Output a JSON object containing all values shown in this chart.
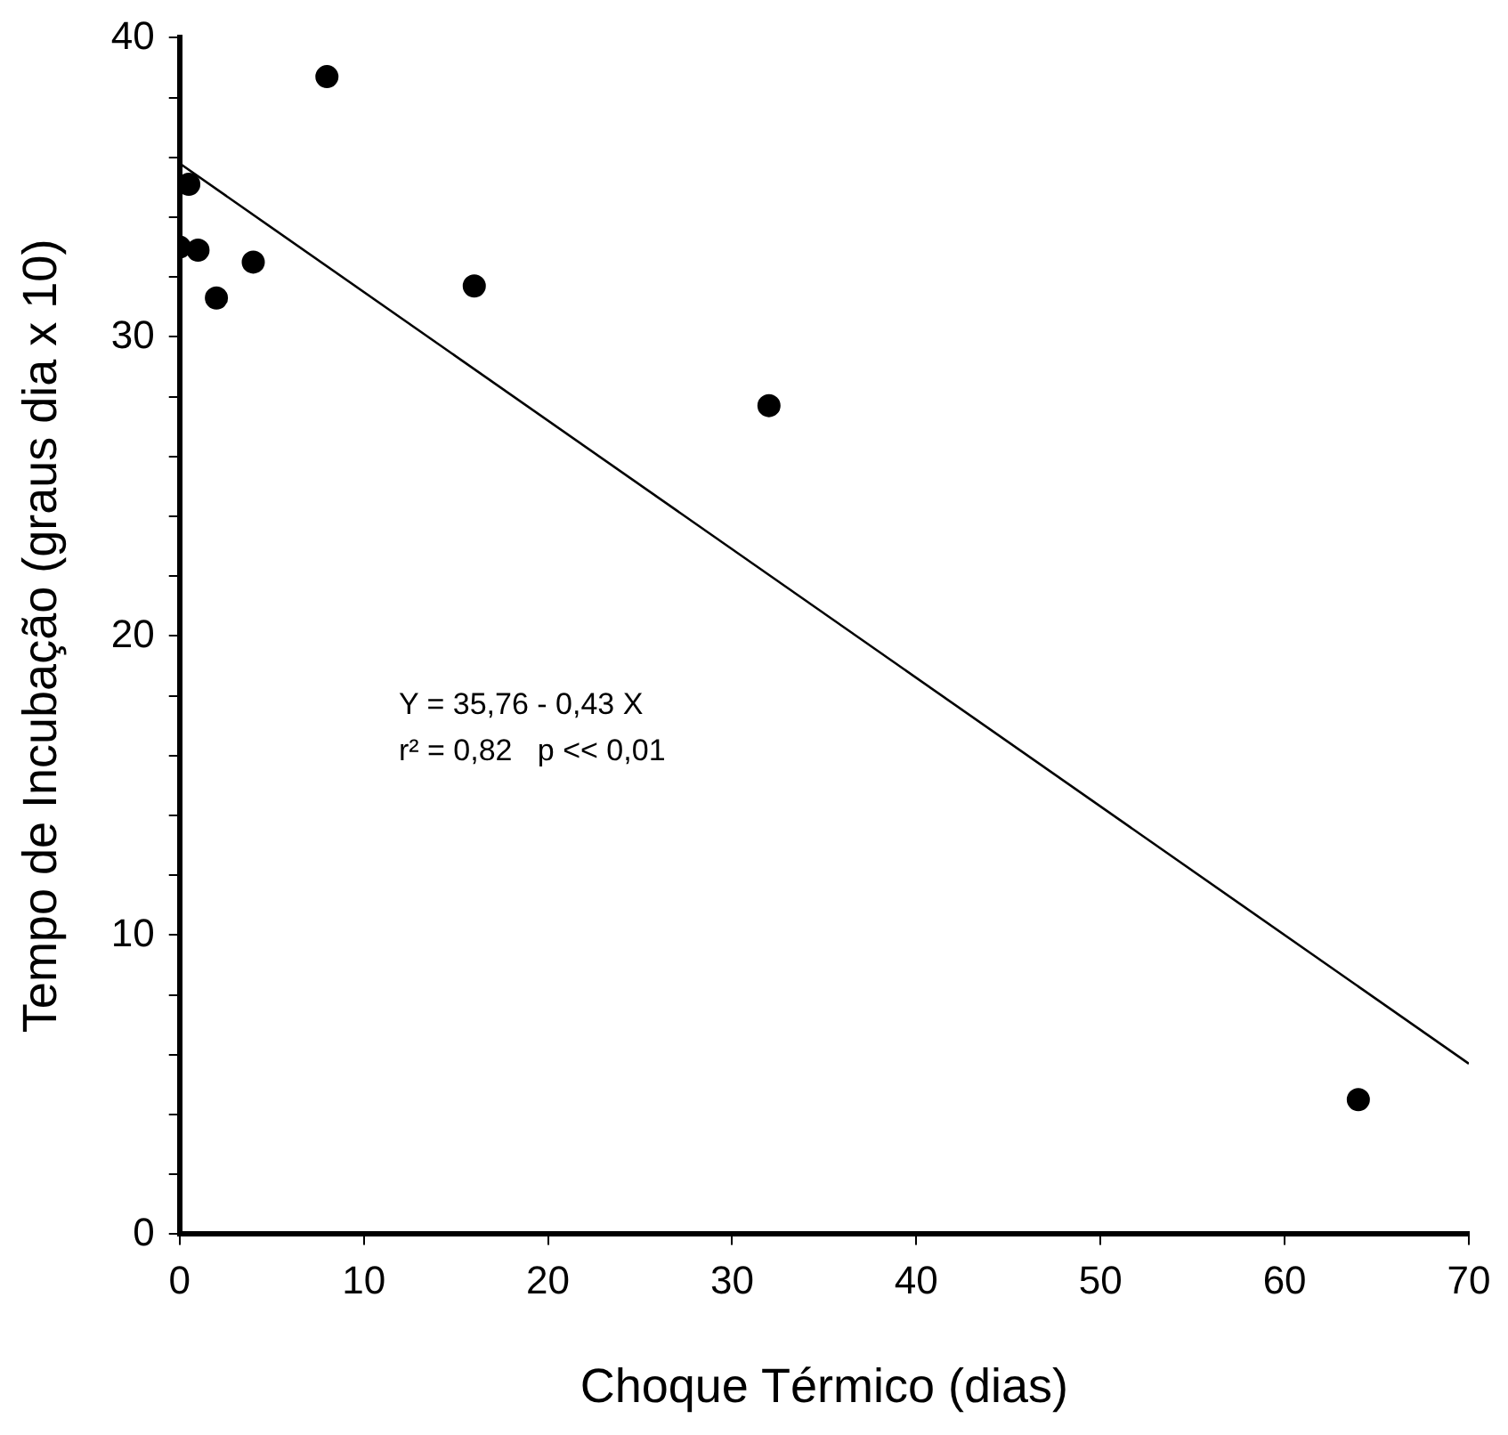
{
  "chart_data": {
    "type": "scatter",
    "xlabel": "Choque Térmico (dias)",
    "ylabel": "Tempo de Incubação (graus dia x 10)",
    "series": [
      {
        "color": "#000000",
        "x": [
          0,
          0.5,
          1,
          2,
          4,
          8,
          16,
          32,
          64
        ],
        "values": [
          33.0,
          35.1,
          32.9,
          31.3,
          32.5,
          38.7,
          31.7,
          27.7,
          4.5
        ]
      },
      {
        "type": "line",
        "marker": "none",
        "color": "#000000",
        "x": [
          0,
          70
        ],
        "values": [
          35.8,
          5.7
        ]
      }
    ],
    "xlim": [
      0,
      70
    ],
    "xticks": [
      0,
      10,
      20,
      30,
      40,
      50,
      60,
      70
    ],
    "ylim": [
      0,
      40
    ],
    "yticks": [
      0,
      {
        "value": 2,
        "label": null
      },
      {
        "value": 4,
        "label": null
      },
      {
        "value": 6,
        "label": null
      },
      {
        "value": 8,
        "label": null
      },
      10,
      {
        "value": 12,
        "label": null
      },
      {
        "value": 14,
        "label": null
      },
      {
        "value": 16,
        "label": null
      },
      {
        "value": 18,
        "label": null
      },
      20,
      {
        "value": 22,
        "label": null
      },
      {
        "value": 24,
        "label": null
      },
      {
        "value": 26,
        "label": null
      },
      {
        "value": 28,
        "label": null
      },
      30,
      {
        "value": 32,
        "label": null
      },
      {
        "value": 34,
        "label": null
      },
      {
        "value": 36,
        "label": null
      },
      {
        "value": 38,
        "label": null
      },
      40
    ],
    "annotations": [
      "Y = 35,76 - 0,43 X",
      "r² = 0,82   p << 0,01"
    ],
    "marker": "circle",
    "grid": false,
    "legend": false
  }
}
